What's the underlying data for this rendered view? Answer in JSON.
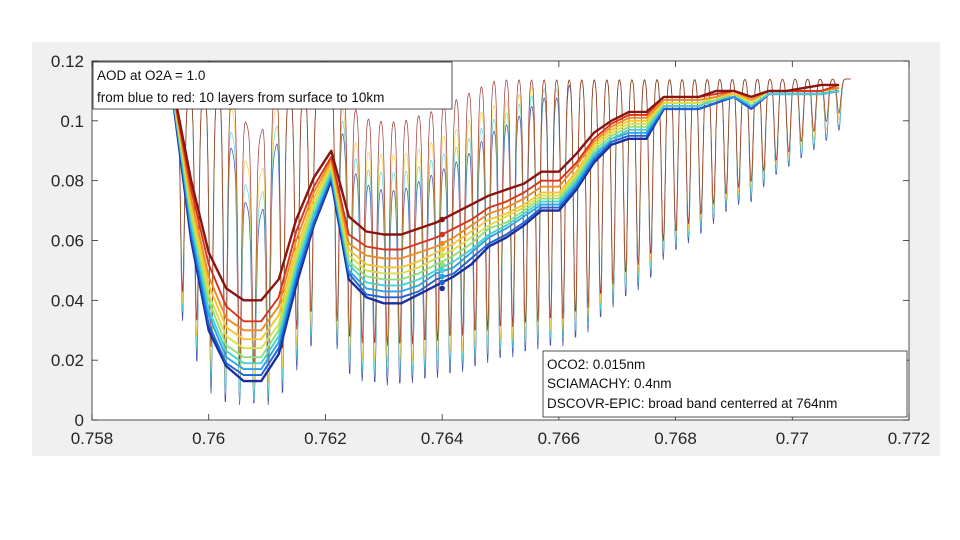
{
  "chart_data": {
    "type": "line",
    "xlim": [
      0.758,
      0.772
    ],
    "ylim": [
      0,
      0.12
    ],
    "xticks": [
      "0.758",
      "0.76",
      "0.762",
      "0.764",
      "0.766",
      "0.768",
      "0.77",
      "0.772"
    ],
    "yticks": [
      "0",
      "0.02",
      "0.04",
      "0.06",
      "0.08",
      "0.1",
      "0.12"
    ],
    "grid": false,
    "annotations": [
      {
        "id": "aod",
        "placement": "top-left",
        "lines": [
          "AOD at O2A = 1.0",
          "from blue to red: 10 layers from surface to 10km"
        ]
      },
      {
        "id": "instruments",
        "placement": "bottom-right",
        "lines": [
          "OCO2: 0.015nm",
          "SCIAMACHY: 0.4nm",
          "DSCOVR-EPIC: broad band centerred at 764nm"
        ]
      }
    ],
    "layer_colors": [
      "#1a2e9e",
      "#1e64d8",
      "#2aa4e8",
      "#46d2cf",
      "#8fe07a",
      "#d6e04a",
      "#f7c530",
      "#f08a24",
      "#d8341c",
      "#8a1410"
    ],
    "series": [
      {
        "id": "sciamachy",
        "resolution": "0.4nm",
        "x": [
          0.7594,
          0.7597,
          0.76,
          0.7603,
          0.7606,
          0.7609,
          0.7612,
          0.7615,
          0.7618,
          0.7621,
          0.7624,
          0.7627,
          0.763,
          0.7633,
          0.7636,
          0.7639,
          0.7642,
          0.7645,
          0.7648,
          0.7651,
          0.7654,
          0.7657,
          0.766,
          0.7663,
          0.7666,
          0.7669,
          0.7672,
          0.7675,
          0.7678,
          0.7681,
          0.7684,
          0.7687,
          0.769,
          0.7693,
          0.7696,
          0.7699,
          0.7702,
          0.7705,
          0.7708
        ],
        "layers": [
          [
            0.105,
            0.06,
            0.03,
            0.018,
            0.013,
            0.013,
            0.022,
            0.045,
            0.065,
            0.08,
            0.047,
            0.041,
            0.039,
            0.039,
            0.042,
            0.045,
            0.048,
            0.052,
            0.058,
            0.061,
            0.065,
            0.07,
            0.07,
            0.077,
            0.086,
            0.092,
            0.094,
            0.094,
            0.104,
            0.104,
            0.104,
            0.106,
            0.108,
            0.104,
            0.109,
            0.109,
            0.109,
            0.109,
            0.11
          ],
          [
            0.106,
            0.062,
            0.032,
            0.019,
            0.015,
            0.015,
            0.024,
            0.047,
            0.066,
            0.081,
            0.049,
            0.042,
            0.041,
            0.041,
            0.043,
            0.047,
            0.049,
            0.054,
            0.059,
            0.062,
            0.066,
            0.071,
            0.071,
            0.078,
            0.087,
            0.093,
            0.095,
            0.095,
            0.104,
            0.104,
            0.104,
            0.106,
            0.108,
            0.104,
            0.109,
            0.109,
            0.109,
            0.109,
            0.11
          ],
          [
            0.106,
            0.064,
            0.035,
            0.021,
            0.017,
            0.017,
            0.026,
            0.049,
            0.068,
            0.082,
            0.05,
            0.044,
            0.043,
            0.043,
            0.045,
            0.049,
            0.051,
            0.056,
            0.061,
            0.064,
            0.068,
            0.072,
            0.072,
            0.079,
            0.088,
            0.094,
            0.096,
            0.096,
            0.105,
            0.105,
            0.105,
            0.107,
            0.108,
            0.105,
            0.109,
            0.109,
            0.109,
            0.109,
            0.11
          ],
          [
            0.107,
            0.066,
            0.037,
            0.023,
            0.019,
            0.019,
            0.028,
            0.051,
            0.069,
            0.083,
            0.052,
            0.046,
            0.045,
            0.045,
            0.047,
            0.05,
            0.053,
            0.057,
            0.062,
            0.065,
            0.069,
            0.073,
            0.073,
            0.08,
            0.089,
            0.094,
            0.097,
            0.097,
            0.105,
            0.105,
            0.105,
            0.107,
            0.109,
            0.105,
            0.109,
            0.109,
            0.109,
            0.109,
            0.11
          ],
          [
            0.107,
            0.068,
            0.04,
            0.025,
            0.021,
            0.021,
            0.03,
            0.053,
            0.071,
            0.084,
            0.053,
            0.048,
            0.047,
            0.047,
            0.049,
            0.052,
            0.055,
            0.059,
            0.064,
            0.066,
            0.07,
            0.074,
            0.074,
            0.081,
            0.09,
            0.095,
            0.098,
            0.098,
            0.106,
            0.106,
            0.106,
            0.107,
            0.109,
            0.106,
            0.11,
            0.11,
            0.11,
            0.11,
            0.111
          ],
          [
            0.108,
            0.07,
            0.042,
            0.028,
            0.024,
            0.024,
            0.032,
            0.055,
            0.072,
            0.085,
            0.055,
            0.05,
            0.049,
            0.049,
            0.051,
            0.054,
            0.057,
            0.061,
            0.065,
            0.068,
            0.071,
            0.075,
            0.075,
            0.082,
            0.091,
            0.096,
            0.099,
            0.099,
            0.106,
            0.106,
            0.106,
            0.108,
            0.109,
            0.106,
            0.11,
            0.11,
            0.11,
            0.11,
            0.111
          ],
          [
            0.108,
            0.072,
            0.045,
            0.031,
            0.027,
            0.027,
            0.035,
            0.057,
            0.074,
            0.086,
            0.057,
            0.052,
            0.051,
            0.051,
            0.053,
            0.056,
            0.059,
            0.063,
            0.067,
            0.069,
            0.072,
            0.076,
            0.076,
            0.083,
            0.092,
            0.097,
            0.1,
            0.1,
            0.107,
            0.107,
            0.107,
            0.108,
            0.109,
            0.107,
            0.11,
            0.11,
            0.11,
            0.11,
            0.111
          ],
          [
            0.109,
            0.074,
            0.048,
            0.034,
            0.03,
            0.03,
            0.038,
            0.06,
            0.076,
            0.087,
            0.059,
            0.055,
            0.054,
            0.054,
            0.056,
            0.058,
            0.061,
            0.065,
            0.069,
            0.071,
            0.074,
            0.078,
            0.078,
            0.085,
            0.093,
            0.098,
            0.101,
            0.101,
            0.107,
            0.107,
            0.107,
            0.108,
            0.11,
            0.107,
            0.11,
            0.11,
            0.11,
            0.11,
            0.111
          ],
          [
            0.109,
            0.077,
            0.052,
            0.038,
            0.033,
            0.033,
            0.041,
            0.063,
            0.078,
            0.088,
            0.062,
            0.058,
            0.057,
            0.057,
            0.059,
            0.061,
            0.064,
            0.067,
            0.071,
            0.073,
            0.076,
            0.08,
            0.08,
            0.086,
            0.094,
            0.099,
            0.102,
            0.102,
            0.108,
            0.108,
            0.108,
            0.109,
            0.11,
            0.108,
            0.11,
            0.11,
            0.11,
            0.11,
            0.112
          ],
          [
            0.11,
            0.08,
            0.056,
            0.044,
            0.04,
            0.04,
            0.047,
            0.067,
            0.081,
            0.09,
            0.068,
            0.063,
            0.062,
            0.062,
            0.064,
            0.066,
            0.069,
            0.072,
            0.075,
            0.077,
            0.079,
            0.083,
            0.083,
            0.089,
            0.096,
            0.1,
            0.103,
            0.103,
            0.108,
            0.108,
            0.108,
            0.11,
            0.11,
            0.108,
            0.11,
            0.11,
            0.111,
            0.112,
            0.112
          ]
        ]
      },
      {
        "id": "dscovr-epic",
        "resolution": "broad band centerred at 764nm",
        "x": [
          0.764,
          0.764,
          0.764,
          0.764,
          0.764,
          0.764,
          0.764,
          0.764,
          0.764,
          0.764
        ],
        "y": [
          0.044,
          0.046,
          0.048,
          0.05,
          0.052,
          0.055,
          0.057,
          0.059,
          0.062,
          0.067
        ]
      }
    ]
  }
}
